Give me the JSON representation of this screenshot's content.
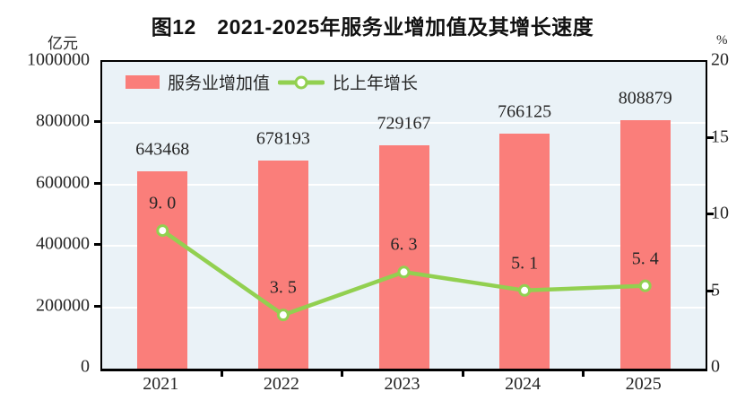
{
  "chart_data": {
    "type": "bar+line",
    "title": "图12　2021-2025年服务业增加值及其增长速度",
    "categories": [
      "2021",
      "2022",
      "2023",
      "2024",
      "2025"
    ],
    "series": [
      {
        "name": "服务业增加值",
        "type": "bar",
        "axis": "left",
        "values": [
          643468,
          678193,
          729167,
          766125,
          808879
        ],
        "labels": [
          "643468",
          "678193",
          "729167",
          "766125",
          "808879"
        ],
        "color": "#FA7E7A"
      },
      {
        "name": "比上年增长",
        "type": "line",
        "axis": "right",
        "values": [
          9.0,
          3.5,
          6.3,
          5.1,
          5.4
        ],
        "labels": [
          "9. 0",
          "3. 5",
          "6. 3",
          "5. 1",
          "5. 4"
        ],
        "color": "#92D050",
        "marker": "circle-white-fill-green-ring"
      }
    ],
    "left_axis": {
      "unit": "亿元",
      "min": 0,
      "max": 1000000,
      "tick_step": 200000,
      "ticks": [
        1000000,
        800000,
        600000,
        400000,
        200000,
        0
      ],
      "tick_labels": [
        "1000000",
        "800000",
        "600000",
        "400000",
        "200000",
        "0"
      ]
    },
    "right_axis": {
      "unit": "%",
      "min": 0,
      "max": 20,
      "tick_step": 5,
      "ticks": [
        20,
        15,
        10,
        5,
        0
      ],
      "tick_labels": [
        "20",
        "15",
        "10",
        "5",
        "0"
      ]
    },
    "legend_position": "top-left-inside",
    "grid": "horizontal-white-at-left-ticks",
    "colors": {
      "plot_bg": "#EAF2F7",
      "gridline": "#FFFFFF",
      "axis_frame": "#000000",
      "text": "#262626",
      "bar": "#FA7E7A",
      "line": "#92D050",
      "marker_fill": "#FFFFFF"
    }
  }
}
